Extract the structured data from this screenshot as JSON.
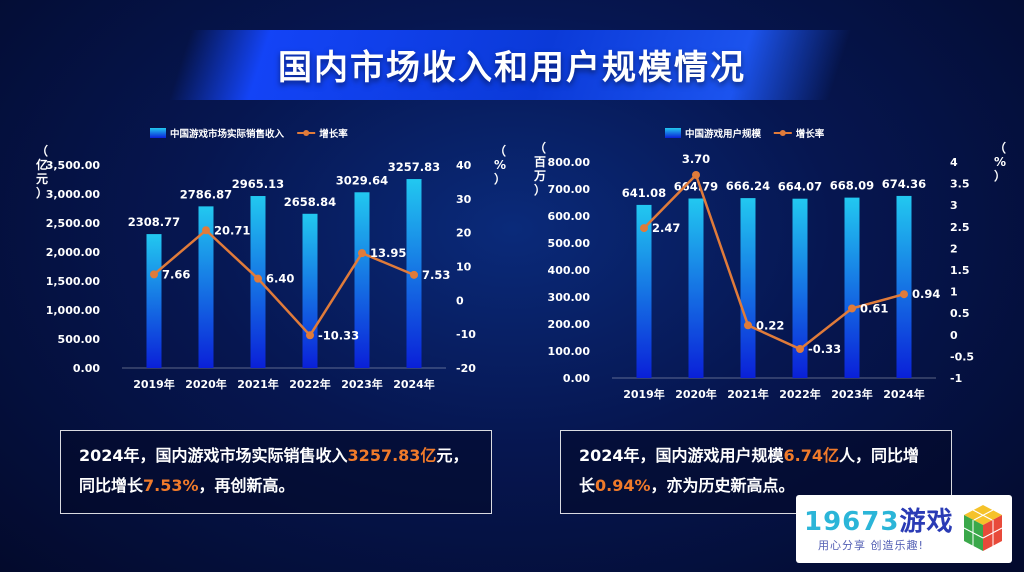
{
  "title": "国内市场收入和用户规模情况",
  "chart_data": [
    {
      "type": "bar+line",
      "legend": [
        "中国游戏市场实际销售收入",
        "增长率"
      ],
      "categories": [
        "2019年",
        "2020年",
        "2021年",
        "2022年",
        "2023年",
        "2024年"
      ],
      "series": [
        {
          "name": "中国游戏市场实际销售收入",
          "type": "bar",
          "axis": "left",
          "values": [
            2308.77,
            2786.87,
            2965.13,
            2658.84,
            3029.64,
            3257.83
          ],
          "labels": [
            "2308.77",
            "2786.87",
            "2965.13",
            "2658.84",
            "3029.64",
            "3257.83"
          ]
        },
        {
          "name": "增长率",
          "type": "line",
          "axis": "right",
          "values": [
            7.66,
            20.71,
            6.4,
            -10.33,
            13.95,
            7.53
          ],
          "labels": [
            "7.66",
            "20.71",
            "6.40",
            "-10.33",
            "13.95",
            "7.53"
          ]
        }
      ],
      "ylabel_left": "（亿元）",
      "ylabel_right": "（%）",
      "ylim_left": [
        0,
        3500
      ],
      "ylim_right": [
        -20,
        40
      ],
      "yticks_left": [
        "0.00",
        "500.00",
        "1,000.00",
        "1,500.00",
        "2,000.00",
        "2,500.00",
        "3,000.00",
        "3,500.00"
      ],
      "yticks_right": [
        "-20",
        "-10",
        "0",
        "10",
        "20",
        "30",
        "40"
      ],
      "legend_position": "top"
    },
    {
      "type": "bar+line",
      "legend": [
        "中国游戏用户规模",
        "增长率"
      ],
      "categories": [
        "2019年",
        "2020年",
        "2021年",
        "2022年",
        "2023年",
        "2024年"
      ],
      "series": [
        {
          "name": "中国游戏用户规模",
          "type": "bar",
          "axis": "left",
          "values": [
            641.08,
            664.79,
            666.24,
            664.07,
            668.09,
            674.36
          ],
          "labels": [
            "641.08",
            "664.79",
            "666.24",
            "664.07",
            "668.09",
            "674.36"
          ]
        },
        {
          "name": "增长率",
          "type": "line",
          "axis": "right",
          "values": [
            2.47,
            3.7,
            0.22,
            -0.33,
            0.61,
            0.94
          ],
          "labels": [
            "2.47",
            "3.70",
            "0.22",
            "-0.33",
            "0.61",
            "0.94"
          ]
        }
      ],
      "ylabel_left": "（百万）",
      "ylabel_right": "（%）",
      "ylim_left": [
        0,
        800
      ],
      "ylim_right": [
        -1,
        4
      ],
      "yticks_left": [
        "0.00",
        "100.00",
        "200.00",
        "300.00",
        "400.00",
        "500.00",
        "600.00",
        "700.00",
        "800.00"
      ],
      "yticks_right": [
        "-1",
        "-0.5",
        "0",
        "0.5",
        "1",
        "1.5",
        "2",
        "2.5",
        "3",
        "3.5",
        "4"
      ],
      "legend_position": "top"
    }
  ],
  "summary_left": {
    "line1_pre": "2024年，国内游戏市场实际销售收入",
    "line1_hl": "3257.83亿",
    "line1_post": "元，",
    "line2_pre": "同比增长",
    "line2_hl": "7.53%",
    "line2_post": "，再创新高。"
  },
  "summary_right": {
    "line1_pre": "2024年，国内游戏用户规模",
    "line1_hl": "6.74亿",
    "line1_post": "人，同比增",
    "line2_pre": "长",
    "line2_hl": "0.94%",
    "line2_post": "，亦为历史新高点。"
  },
  "logo": {
    "num": "19673",
    "text": "游戏",
    "slogan": "用心分享  创造乐趣!"
  },
  "colors": {
    "bar_top": "#22c8f0",
    "bar_bottom": "#0a20d8",
    "line": "#e07b3a",
    "highlight": "#f07a2a"
  }
}
